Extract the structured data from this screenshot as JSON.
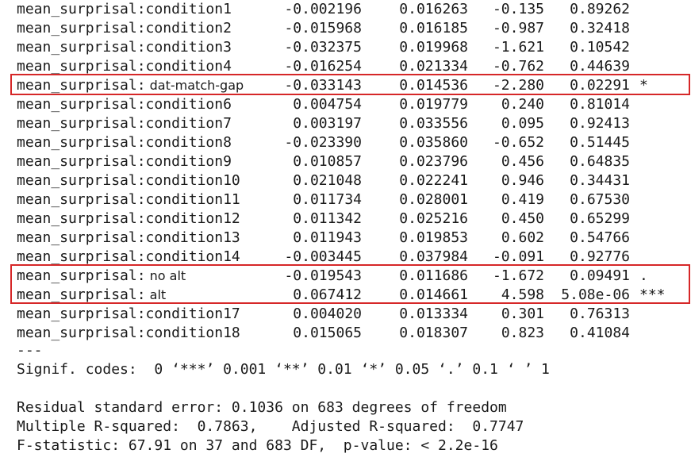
{
  "rows": [
    {
      "term": "mean_surprisal:condition1",
      "est": "-0.002196",
      "se": "0.016263",
      "t": "-0.135",
      "p": "0.89262",
      "sig": ""
    },
    {
      "term": "mean_surprisal:condition2",
      "est": "-0.015968",
      "se": "0.016185",
      "t": "-0.987",
      "p": "0.32418",
      "sig": ""
    },
    {
      "term": "mean_surprisal:condition3",
      "est": "-0.032375",
      "se": "0.019968",
      "t": "-1.621",
      "p": "0.10542",
      "sig": ""
    },
    {
      "term": "mean_surprisal:condition4",
      "est": "-0.016254",
      "se": "0.021334",
      "t": "-0.762",
      "p": "0.44639",
      "sig": ""
    },
    {
      "term_prefix": "mean_surprisal:",
      "term_suffix": " dat-match-gap",
      "est": "-0.033143",
      "se": "0.014536",
      "t": "-2.280",
      "p": "0.02291",
      "sig": "*"
    },
    {
      "term": "mean_surprisal:condition6",
      "est": "0.004754",
      "se": "0.019779",
      "t": "0.240",
      "p": "0.81014",
      "sig": ""
    },
    {
      "term": "mean_surprisal:condition7",
      "est": "0.003197",
      "se": "0.033556",
      "t": "0.095",
      "p": "0.92413",
      "sig": ""
    },
    {
      "term": "mean_surprisal:condition8",
      "est": "-0.023390",
      "se": "0.035860",
      "t": "-0.652",
      "p": "0.51445",
      "sig": ""
    },
    {
      "term": "mean_surprisal:condition9",
      "est": "0.010857",
      "se": "0.023796",
      "t": "0.456",
      "p": "0.64835",
      "sig": ""
    },
    {
      "term": "mean_surprisal:condition10",
      "est": "0.021048",
      "se": "0.022241",
      "t": "0.946",
      "p": "0.34431",
      "sig": ""
    },
    {
      "term": "mean_surprisal:condition11",
      "est": "0.011734",
      "se": "0.028001",
      "t": "0.419",
      "p": "0.67530",
      "sig": ""
    },
    {
      "term": "mean_surprisal:condition12",
      "est": "0.011342",
      "se": "0.025216",
      "t": "0.450",
      "p": "0.65299",
      "sig": ""
    },
    {
      "term": "mean_surprisal:condition13",
      "est": "0.011943",
      "se": "0.019853",
      "t": "0.602",
      "p": "0.54766",
      "sig": ""
    },
    {
      "term": "mean_surprisal:condition14",
      "est": "-0.003445",
      "se": "0.037984",
      "t": "-0.091",
      "p": "0.92776",
      "sig": ""
    },
    {
      "term_prefix": "mean_surprisal:",
      "term_suffix": " no alt",
      "est": "-0.019543",
      "se": "0.011686",
      "t": "-1.672",
      "p": "0.09491",
      "sig": "."
    },
    {
      "term_prefix": "mean_surprisal:",
      "term_suffix": " alt",
      "est": "0.067412",
      "se": "0.014661",
      "t": "4.598",
      "p": "5.08e-06",
      "sig": "***"
    },
    {
      "term": "mean_surprisal:condition17",
      "est": "0.004020",
      "se": "0.013334",
      "t": "0.301",
      "p": "0.76313",
      "sig": ""
    },
    {
      "term": "mean_surprisal:condition18",
      "est": "0.015065",
      "se": "0.018307",
      "t": "0.823",
      "p": "0.41084",
      "sig": ""
    }
  ],
  "separator": "---",
  "signif_codes": "Signif. codes:  0 ‘***’ 0.001 ‘**’ 0.01 ‘*’ 0.05 ‘.’ 0.1 ‘ ’ 1",
  "residual_se": "Residual standard error: 0.1036 on 683 degrees of freedom",
  "r_squared": "Multiple R-squared:  0.7863,    Adjusted R-squared:  0.7747",
  "f_statistic": "F-statistic: 67.91 on 37 and 683 DF,  p-value: < 2.2e-16",
  "highlight_color": "#d62728"
}
